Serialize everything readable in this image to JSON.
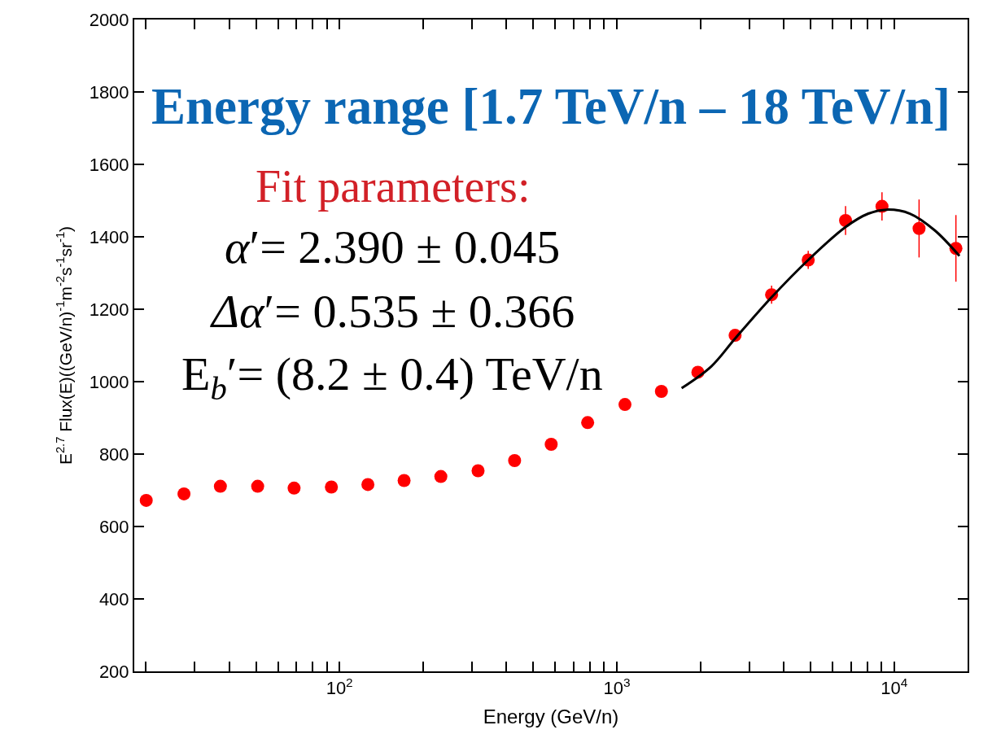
{
  "chart_data": {
    "type": "scatter",
    "title": "Energy range [1.7 TeV/n – 18 TeV/n]",
    "xlabel": "Energy (GeV/n)",
    "ylabel": "E$^{2.7}$ Flux(E)((GeV/n)$^{-1}$m$^{-2}$s$^{-1}$sr$^{-1}$)",
    "log": "x",
    "xlim": [
      18.2,
      18400
    ],
    "ylim": [
      200,
      2000
    ],
    "xticks": [
      {
        "value": 20,
        "label": null
      },
      {
        "value": 30,
        "label": null
      },
      {
        "value": 40,
        "label": null
      },
      {
        "value": 50,
        "label": null
      },
      {
        "value": 60,
        "label": null
      },
      {
        "value": 70,
        "label": null
      },
      {
        "value": 80,
        "label": null
      },
      {
        "value": 90,
        "label": null
      },
      {
        "value": 100,
        "label": "10$^{2}$"
      },
      {
        "value": 200,
        "label": null
      },
      {
        "value": 300,
        "label": null
      },
      {
        "value": 400,
        "label": null
      },
      {
        "value": 500,
        "label": null
      },
      {
        "value": 600,
        "label": null
      },
      {
        "value": 700,
        "label": null
      },
      {
        "value": 800,
        "label": null
      },
      {
        "value": 900,
        "label": null
      },
      {
        "value": 1000,
        "label": "10$^{3}$"
      },
      {
        "value": 2000,
        "label": null
      },
      {
        "value": 3000,
        "label": null
      },
      {
        "value": 4000,
        "label": null
      },
      {
        "value": 5000,
        "label": null
      },
      {
        "value": 6000,
        "label": null
      },
      {
        "value": 7000,
        "label": null
      },
      {
        "value": 8000,
        "label": null
      },
      {
        "value": 9000,
        "label": null
      },
      {
        "value": 10000,
        "label": "10$^{4}$"
      }
    ],
    "yticks": [
      200,
      400,
      600,
      800,
      1000,
      1200,
      1400,
      1600,
      1800,
      2000
    ],
    "annotations": [
      "Fit parameters:",
      "α′= 2.390 ± 0.045",
      "Δα′= 0.535 ± 0.366",
      "E$_{b}$′= (8.2 ± 0.4) TeV/n"
    ],
    "series": [
      {
        "type": "scatter",
        "color": "#ff0000",
        "marker": "circle",
        "x": [
          20.1,
          27.5,
          37.2,
          50.7,
          68.6,
          93.5,
          126.6,
          171,
          232,
          316,
          428,
          580,
          785,
          1070,
          1448,
          1960,
          2670,
          3615,
          4900,
          6680,
          9040,
          12300,
          16700
        ],
        "values": [
          672,
          690,
          711,
          711,
          706,
          709,
          716,
          727,
          738,
          754,
          782,
          827,
          887,
          937,
          973,
          1026,
          1128,
          1240,
          1336,
          1445,
          1484,
          1423,
          1368
        ],
        "errors": [
          null,
          null,
          null,
          null,
          null,
          null,
          null,
          null,
          null,
          null,
          null,
          null,
          null,
          null,
          null,
          null,
          null,
          25,
          25,
          40,
          39,
          80,
          92
        ]
      },
      {
        "type": "line",
        "color": "#000000",
        "line_style": "solid",
        "x": [
          1713,
          2190,
          2670,
          3615,
          4900,
          6680,
          8070,
          9400,
          11400,
          14000,
          17200
        ],
        "values": [
          982,
          1042,
          1119,
          1233,
          1336,
          1427,
          1464,
          1475,
          1464,
          1418,
          1347
        ]
      }
    ]
  }
}
